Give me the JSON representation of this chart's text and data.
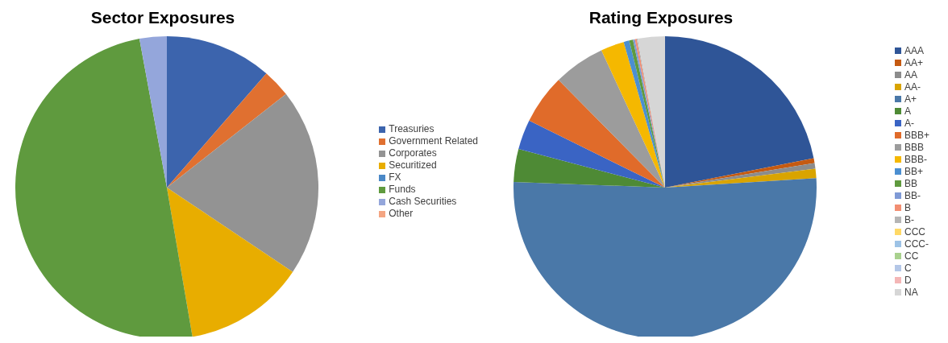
{
  "chart_data": [
    {
      "type": "pie",
      "title": "Sector Exposures",
      "categories": [
        "Treasuries",
        "Government Related",
        "Corporates",
        "Securitized",
        "FX",
        "Funds",
        "Cash Securities",
        "Other"
      ],
      "values": [
        11.4,
        3,
        20,
        12.9,
        0,
        49.8,
        2.9,
        0
      ],
      "colors": [
        "#3c64ad",
        "#e07030",
        "#939393",
        "#e8ad00",
        "#4a88c7",
        "#5f9a3e",
        "#94a6db",
        "#f4a582"
      ],
      "legend": "right"
    },
    {
      "type": "pie",
      "title": "Rating Exposures",
      "categories": [
        "AAA",
        "AA+",
        "AA",
        "AA-",
        "A+",
        "A",
        "A-",
        "BBB+",
        "BBB",
        "BBB-",
        "BB+",
        "BB",
        "BB-",
        "B",
        "B-",
        "CCC",
        "CCC-",
        "CC",
        "C",
        "D",
        "NA"
      ],
      "values": [
        21.9,
        0.5,
        0.6,
        1,
        51.6,
        3.5,
        3.2,
        5.3,
        5.5,
        2.5,
        0.6,
        0.4,
        0.2,
        0.2,
        0.1,
        0,
        0,
        0,
        0,
        0,
        2.9
      ],
      "colors": [
        "#2f5597",
        "#c55a11",
        "#8c8c8c",
        "#d9a400",
        "#4a78a8",
        "#4e8a35",
        "#3a64c4",
        "#e06b2a",
        "#9c9c9c",
        "#f5b800",
        "#4b8fd1",
        "#5f9a3e",
        "#7f9ad6",
        "#f28e72",
        "#b5b5b5",
        "#ffd966",
        "#9dc3e6",
        "#a9d18e",
        "#b4c7e7",
        "#f4b6b6",
        "#d6d6d6"
      ],
      "legend": "right"
    }
  ]
}
